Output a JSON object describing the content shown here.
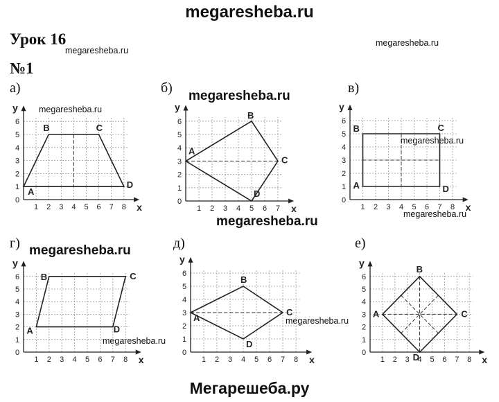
{
  "site": {
    "header": "megaresheba.ru",
    "footer": "Мегарешеба.ру",
    "watermark": "megaresheba.ru"
  },
  "lesson_title": "Урок 16",
  "task_number": "№1",
  "chart_data": [
    {
      "type": "diagram",
      "label": "а)",
      "xlabel": "x",
      "ylabel": "y",
      "xlim": [
        0,
        8
      ],
      "ylim": [
        0,
        6
      ],
      "x_ticks": [
        "1",
        "2",
        "3",
        "4",
        "5",
        "6",
        "7",
        "8"
      ],
      "y_ticks": [
        "1",
        "2",
        "3",
        "4",
        "5",
        "6"
      ],
      "points": [
        {
          "name": "A",
          "x": 0,
          "y": 1
        },
        {
          "name": "B",
          "x": 2,
          "y": 5
        },
        {
          "name": "C",
          "x": 6,
          "y": 5
        },
        {
          "name": "D",
          "x": 8,
          "y": 1
        }
      ],
      "dashed": [
        [
          4,
          5,
          4,
          1
        ]
      ]
    },
    {
      "type": "diagram",
      "label": "б)",
      "xlabel": "x",
      "ylabel": "y",
      "xlim": [
        0,
        7
      ],
      "ylim": [
        0,
        6
      ],
      "x_ticks": [
        "1",
        "2",
        "3",
        "4",
        "5",
        "6",
        "7"
      ],
      "y_ticks": [
        "1",
        "2",
        "3",
        "4",
        "5",
        "6"
      ],
      "points": [
        {
          "name": "A",
          "x": 0,
          "y": 3
        },
        {
          "name": "B",
          "x": 5,
          "y": 6
        },
        {
          "name": "C",
          "x": 7,
          "y": 3
        },
        {
          "name": "D",
          "x": 5,
          "y": 0
        }
      ],
      "dashed": [
        [
          0,
          3,
          7,
          3
        ]
      ]
    },
    {
      "type": "diagram",
      "label": "в)",
      "xlabel": "x",
      "ylabel": "y",
      "xlim": [
        0,
        8
      ],
      "ylim": [
        0,
        6
      ],
      "x_ticks": [
        "1",
        "2",
        "3",
        "4",
        "5",
        "6",
        "7",
        "8"
      ],
      "y_ticks": [
        "1",
        "2",
        "3",
        "4",
        "5",
        "6"
      ],
      "points": [
        {
          "name": "A",
          "x": 1,
          "y": 1
        },
        {
          "name": "B",
          "x": 1,
          "y": 5
        },
        {
          "name": "C",
          "x": 7,
          "y": 5
        },
        {
          "name": "D",
          "x": 7,
          "y": 1
        }
      ],
      "dashed": [
        [
          4,
          5,
          4,
          1
        ],
        [
          1,
          3,
          7,
          3
        ]
      ]
    },
    {
      "type": "diagram",
      "label": "г)",
      "xlabel": "x",
      "ylabel": "y",
      "xlim": [
        0,
        8
      ],
      "ylim": [
        0,
        6
      ],
      "x_ticks": [
        "1",
        "2",
        "3",
        "4",
        "5",
        "6",
        "7",
        "8"
      ],
      "y_ticks": [
        "1",
        "2",
        "3",
        "4",
        "5",
        "6"
      ],
      "points": [
        {
          "name": "A",
          "x": 1,
          "y": 2
        },
        {
          "name": "B",
          "x": 2,
          "y": 6
        },
        {
          "name": "C",
          "x": 8,
          "y": 6
        },
        {
          "name": "D",
          "x": 7,
          "y": 2
        }
      ],
      "dashed": []
    },
    {
      "type": "diagram",
      "label": "д)",
      "xlabel": "x",
      "ylabel": "y",
      "xlim": [
        0,
        8
      ],
      "ylim": [
        0,
        6
      ],
      "x_ticks": [
        "1",
        "2",
        "3",
        "4",
        "5",
        "6",
        "7",
        "8"
      ],
      "y_ticks": [
        "1",
        "2",
        "3",
        "4",
        "5",
        "6"
      ],
      "points": [
        {
          "name": "A",
          "x": 0,
          "y": 3
        },
        {
          "name": "B",
          "x": 4,
          "y": 5
        },
        {
          "name": "C",
          "x": 7,
          "y": 3
        },
        {
          "name": "D",
          "x": 4,
          "y": 1
        }
      ],
      "dashed": [
        [
          0,
          3,
          7,
          3
        ]
      ]
    },
    {
      "type": "diagram",
      "label": "е)",
      "xlabel": "x",
      "ylabel": "y",
      "xlim": [
        0,
        8
      ],
      "ylim": [
        0,
        6
      ],
      "x_ticks": [
        "1",
        "2",
        "3",
        "4",
        "5",
        "6",
        "7",
        "8"
      ],
      "y_ticks": [
        "1",
        "2",
        "3",
        "4",
        "5",
        "6"
      ],
      "points": [
        {
          "name": "A",
          "x": 1,
          "y": 3
        },
        {
          "name": "B",
          "x": 4,
          "y": 6
        },
        {
          "name": "C",
          "x": 7,
          "y": 3
        },
        {
          "name": "D",
          "x": 4,
          "y": 0
        }
      ],
      "dashed": [
        [
          4,
          6,
          4,
          0
        ],
        [
          1,
          3,
          7,
          3
        ],
        [
          2.5,
          4.5,
          5.5,
          1.5
        ],
        [
          5.5,
          4.5,
          2.5,
          1.5
        ]
      ]
    }
  ]
}
